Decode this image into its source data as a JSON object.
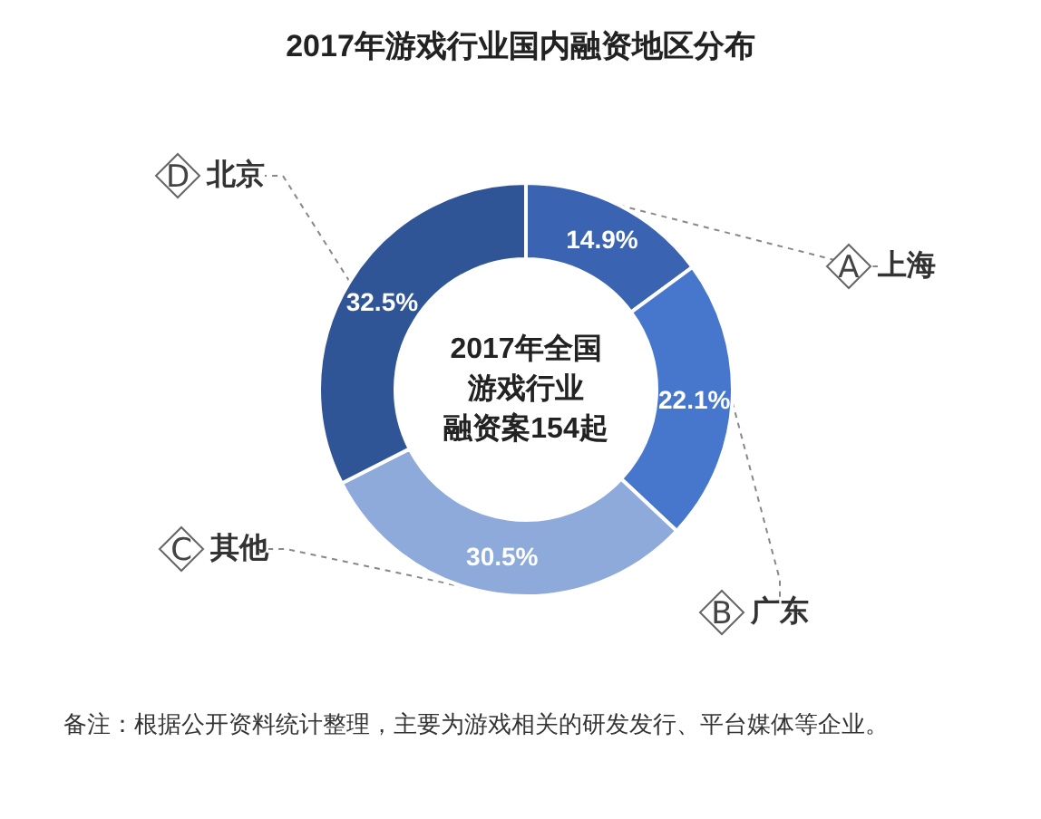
{
  "chart_data": {
    "type": "donut",
    "title": "2017年游戏行业国内融资地区分布",
    "categories": [
      "上海",
      "广东",
      "其他",
      "北京"
    ],
    "values": [
      14.9,
      22.1,
      30.5,
      32.5
    ],
    "value_labels": [
      "14.9%",
      "22.1%",
      "30.5%",
      "32.5%"
    ],
    "colors": [
      "#3a63b2",
      "#4677cc",
      "#8eaadb",
      "#2f5597"
    ],
    "legend": false,
    "annotations": [
      "2017年全国",
      "游戏行业",
      "融资案154起",
      {
        "text": "A",
        "x": "上海"
      },
      {
        "text": "B",
        "x": "广东"
      },
      {
        "text": "C",
        "x": "其他"
      },
      {
        "text": "D",
        "x": "北京"
      },
      "备注：根据公开资料统计整理，主要为游戏相关的研发发行、平台媒体等企业。"
    ]
  }
}
